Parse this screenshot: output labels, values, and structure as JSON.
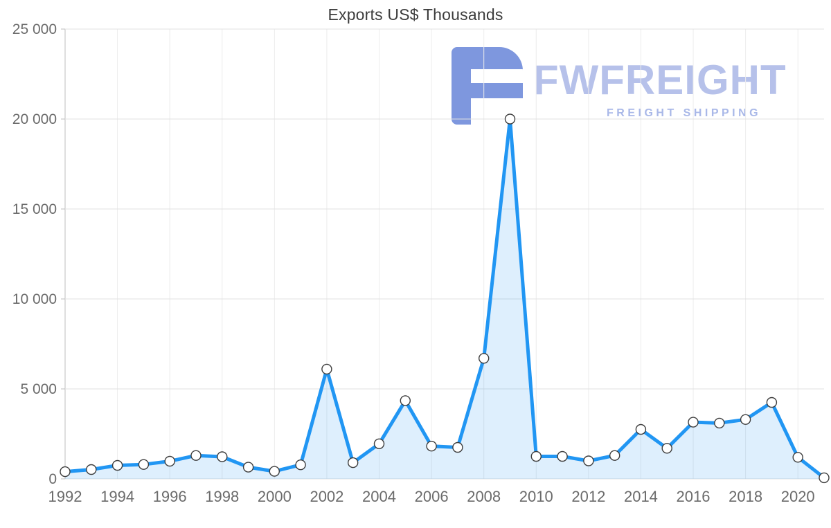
{
  "title": "Exports US$ Thousands",
  "watermark": {
    "brand": "FWFREIGHT",
    "tagline": "FREIGHT SHIPPING",
    "logo_color": "#7e97de"
  },
  "chart_data": {
    "type": "area",
    "title": "Exports US$ Thousands",
    "x": [
      1992,
      1993,
      1994,
      1995,
      1996,
      1997,
      1998,
      1999,
      2000,
      2001,
      2002,
      2003,
      2004,
      2005,
      2006,
      2007,
      2008,
      2009,
      2010,
      2011,
      2012,
      2013,
      2014,
      2015,
      2016,
      2017,
      2018,
      2019,
      2020,
      2021
    ],
    "values": [
      400,
      520,
      750,
      800,
      980,
      1300,
      1230,
      650,
      420,
      780,
      6100,
      900,
      1950,
      4350,
      1820,
      1750,
      6700,
      20000,
      1250,
      1250,
      1000,
      1300,
      2750,
      1700,
      3150,
      3100,
      3300,
      4250,
      1200,
      60
    ],
    "xlabel": "",
    "ylabel": "",
    "ylim": [
      0,
      25000
    ],
    "yticks": [
      0,
      5000,
      10000,
      15000,
      20000,
      25000
    ],
    "ytick_labels": [
      "0",
      "5 000",
      "10 000",
      "15 000",
      "20 000",
      "25 000"
    ],
    "xticks": [
      1992,
      1994,
      1996,
      1998,
      2000,
      2002,
      2004,
      2006,
      2008,
      2010,
      2012,
      2014,
      2016,
      2018,
      2020
    ],
    "xtick_labels": [
      "1992",
      "1994",
      "1996",
      "1998",
      "2000",
      "2002",
      "2004",
      "2006",
      "2008",
      "2010",
      "2012",
      "2014",
      "2016",
      "2018",
      "2020"
    ],
    "grid": true,
    "legend": "none",
    "line_color": "#2196f3",
    "fill_color": "#2196f3",
    "fill_opacity": 0.15,
    "marker_fill": "#ffffff",
    "marker_stroke": "#3d3d3d",
    "grid_color_h": "#e0e0e0",
    "grid_color_v": "#ececec",
    "axis_line_color": "#bdbdbd",
    "axis_text_color": "#6b6b6b"
  }
}
